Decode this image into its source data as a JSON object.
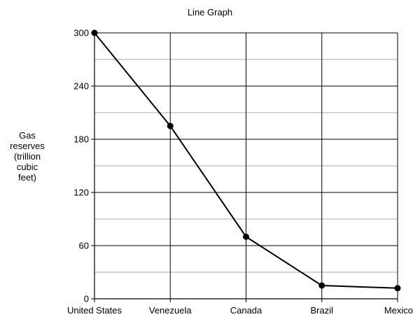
{
  "chart_data": {
    "type": "line",
    "title": "Line Graph",
    "ylabel_lines": [
      "Gas",
      "reserves",
      "(trillion",
      "cubic",
      "feet)"
    ],
    "xlabel": "",
    "categories": [
      "United States",
      "Venezuela",
      "Canada",
      "Brazil",
      "Mexico"
    ],
    "series": [
      {
        "values": [
          300,
          195,
          70,
          15,
          12
        ]
      }
    ],
    "ylim": [
      0,
      300
    ],
    "yticks": [
      0,
      60,
      120,
      180,
      240,
      300
    ],
    "minor_gridlines": [
      30,
      90,
      150,
      210,
      270
    ],
    "grid": true,
    "legend": "none",
    "colors": {
      "line": "#000000",
      "major_grid": "#000000",
      "minor_grid": "#aaaaaa"
    }
  }
}
